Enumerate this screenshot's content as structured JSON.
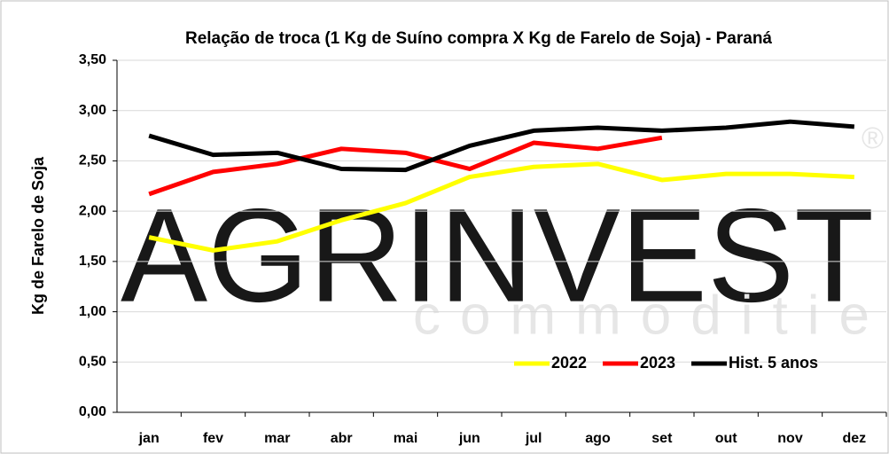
{
  "chart_data": {
    "type": "line",
    "title": "Relação de troca (1 Kg de Suíno compra X Kg de Farelo de Soja) - Paraná",
    "y_label": "Kg de Farelo de Soja",
    "watermark": [
      "AGRINVEST",
      "commodities",
      "®"
    ],
    "categories": [
      "jan",
      "fev",
      "mar",
      "abr",
      "mai",
      "jun",
      "jul",
      "ago",
      "set",
      "out",
      "nov",
      "dez"
    ],
    "series": [
      {
        "name": "2022",
        "color": "#ffff00",
        "values": [
          1.74,
          1.61,
          1.7,
          1.91,
          2.08,
          2.34,
          2.44,
          2.47,
          2.31,
          2.37,
          2.37,
          2.34
        ]
      },
      {
        "name": "2023",
        "color": "#ff0000",
        "values": [
          2.17,
          2.39,
          2.47,
          2.62,
          2.58,
          2.42,
          2.68,
          2.62,
          2.73,
          null,
          null,
          null
        ]
      },
      {
        "name": "Hist. 5 anos",
        "color": "#000000",
        "values": [
          2.75,
          2.56,
          2.58,
          2.42,
          2.41,
          2.65,
          2.8,
          2.83,
          2.8,
          2.83,
          2.89,
          2.84
        ]
      }
    ],
    "ylim": [
      0,
      3.5
    ],
    "yticks": [
      {
        "value": 0,
        "label": "0,00"
      },
      {
        "value": 0.5,
        "label": "0,50"
      },
      {
        "value": 1,
        "label": "1,00"
      },
      {
        "value": 1.5,
        "label": "1,50"
      },
      {
        "value": 2,
        "label": "2,00"
      },
      {
        "value": 2.5,
        "label": "2,50"
      },
      {
        "value": 3,
        "label": "3,00"
      },
      {
        "value": 3.5,
        "label": "3,50"
      }
    ],
    "grid": true,
    "legend": "lower right"
  }
}
